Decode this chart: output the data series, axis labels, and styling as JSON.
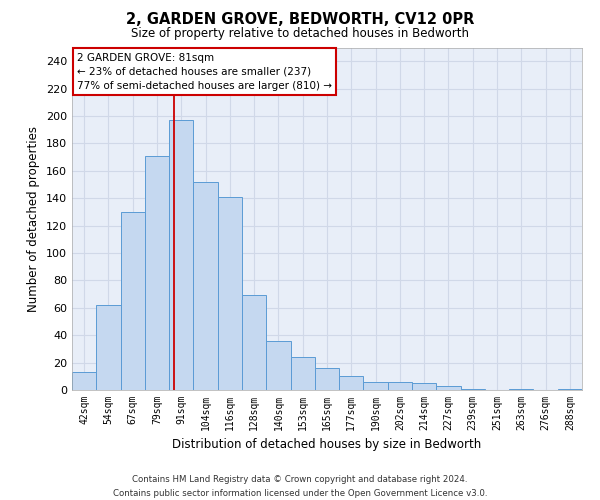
{
  "title": "2, GARDEN GROVE, BEDWORTH, CV12 0PR",
  "subtitle": "Size of property relative to detached houses in Bedworth",
  "xlabel": "Distribution of detached houses by size in Bedworth",
  "ylabel": "Number of detached properties",
  "footer_line1": "Contains HM Land Registry data © Crown copyright and database right 2024.",
  "footer_line2": "Contains public sector information licensed under the Open Government Licence v3.0.",
  "bar_color": "#c5d8f0",
  "bar_edge_color": "#5b9bd5",
  "categories": [
    "42sqm",
    "54sqm",
    "67sqm",
    "79sqm",
    "91sqm",
    "104sqm",
    "116sqm",
    "128sqm",
    "140sqm",
    "153sqm",
    "165sqm",
    "177sqm",
    "190sqm",
    "202sqm",
    "214sqm",
    "227sqm",
    "239sqm",
    "251sqm",
    "263sqm",
    "276sqm",
    "288sqm"
  ],
  "values": [
    13,
    62,
    130,
    171,
    197,
    152,
    141,
    69,
    36,
    24,
    16,
    10,
    6,
    6,
    5,
    3,
    1,
    0,
    1,
    0,
    1
  ],
  "ylim": [
    0,
    250
  ],
  "yticks": [
    0,
    20,
    40,
    60,
    80,
    100,
    120,
    140,
    160,
    180,
    200,
    220,
    240
  ],
  "property_line_x": 3.68,
  "annotation_text_line1": "2 GARDEN GROVE: 81sqm",
  "annotation_text_line2": "← 23% of detached houses are smaller (237)",
  "annotation_text_line3": "77% of semi-detached houses are larger (810) →",
  "annotation_box_color": "#ffffff",
  "annotation_box_edge": "#cc0000",
  "red_line_color": "#cc0000",
  "grid_color": "#d0d8e8",
  "background_color": "#e8eef8"
}
